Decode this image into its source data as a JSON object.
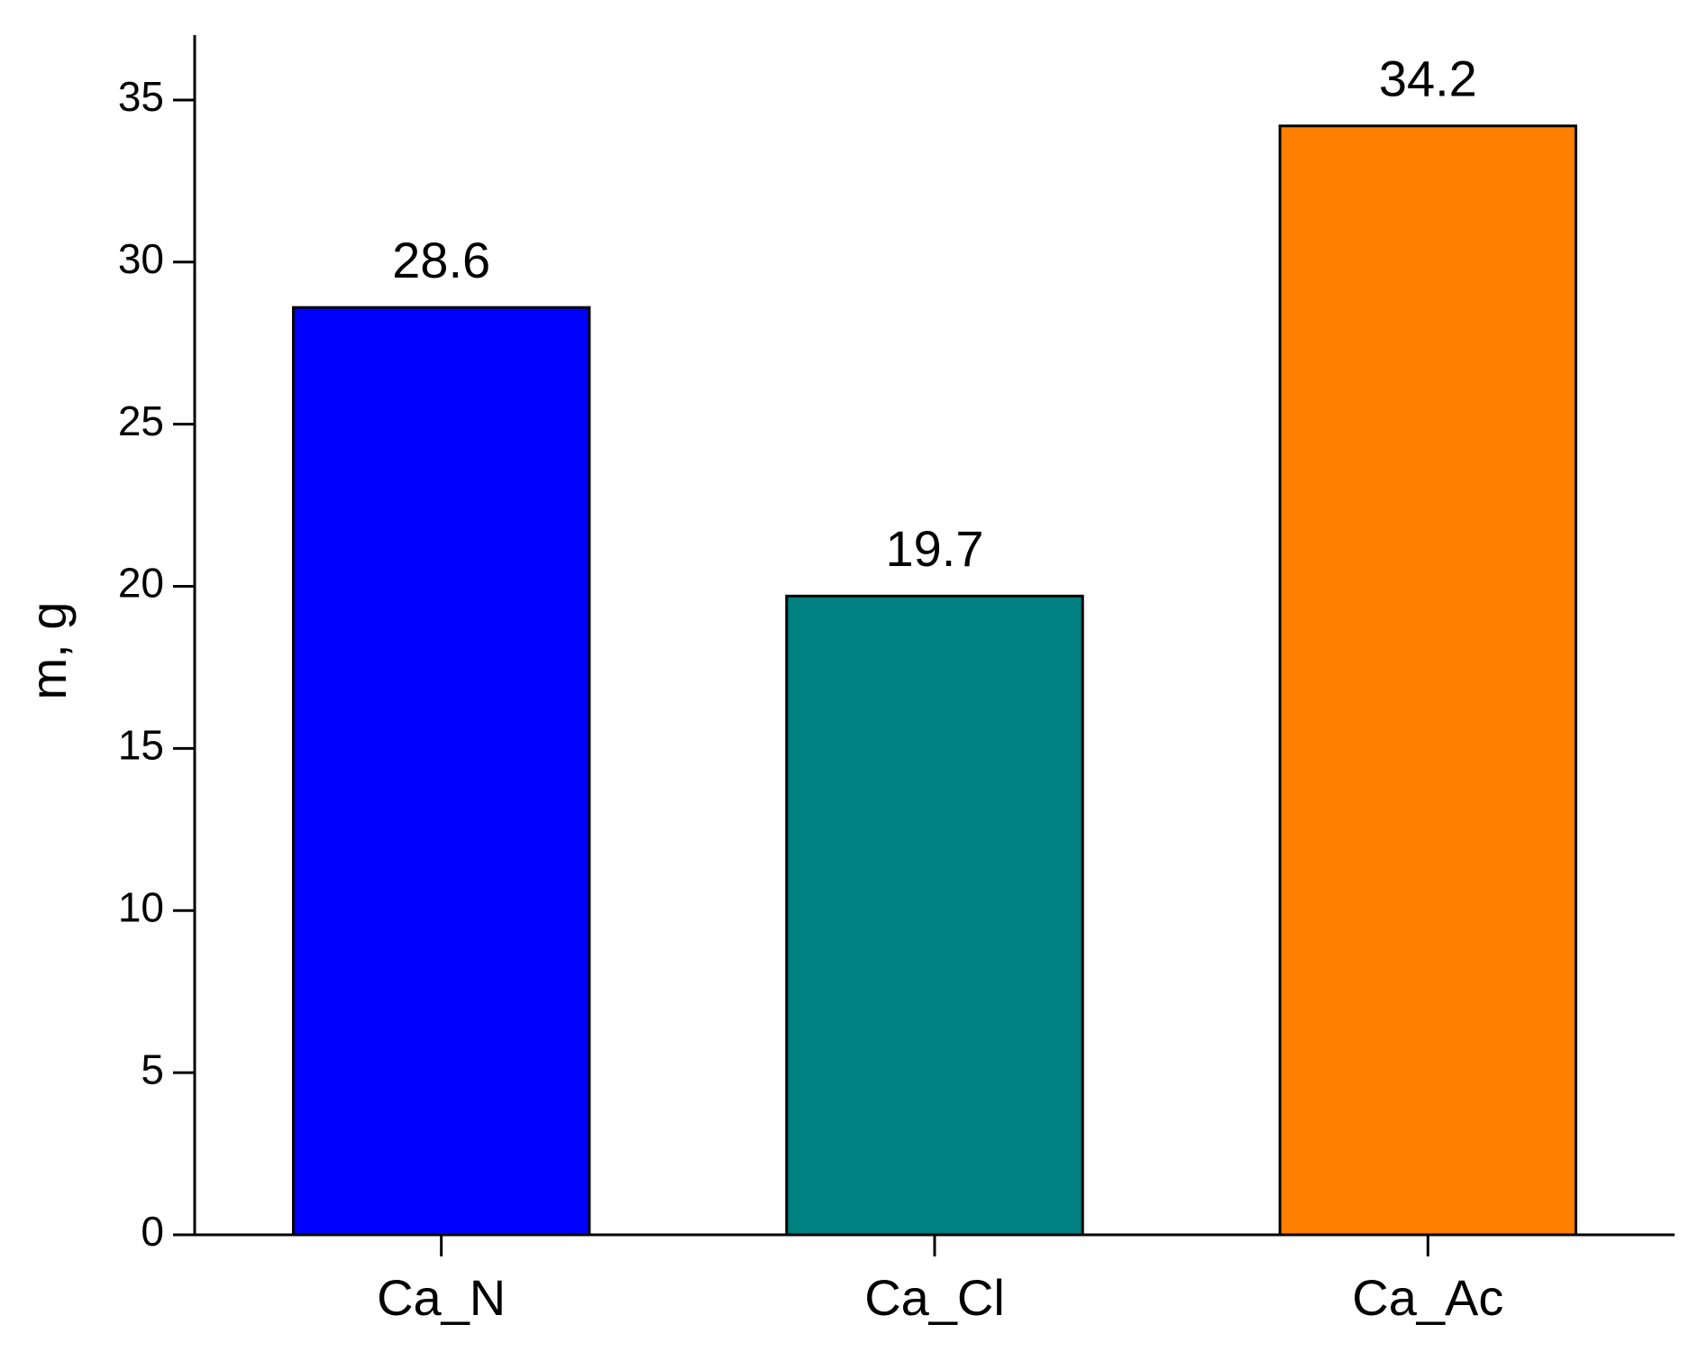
{
  "chart_data": {
    "type": "bar",
    "y_label": "m, g",
    "categories": [
      "Ca_N",
      "Ca_Cl",
      "Ca_Ac"
    ],
    "values": [
      28.6,
      19.7,
      34.2
    ],
    "colors": [
      "#0000ff",
      "#008080",
      "#ff8000"
    ],
    "ylim": [
      0,
      37
    ],
    "yticks": [
      0,
      5,
      10,
      15,
      20,
      25,
      30,
      35
    ],
    "grid": false
  }
}
